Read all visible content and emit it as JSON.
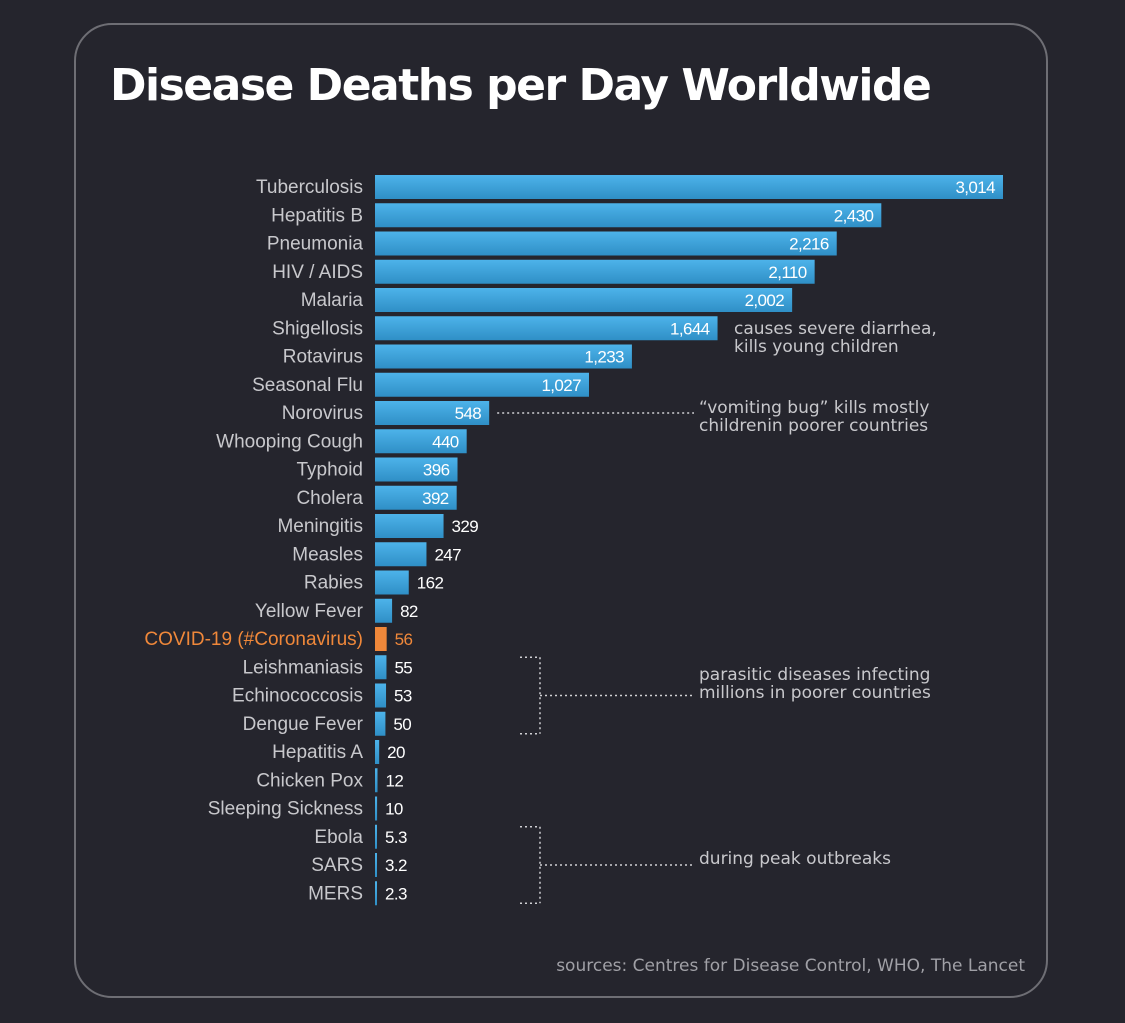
{
  "chart_data": {
    "type": "bar",
    "orientation": "horizontal",
    "title": "Disease Deaths per Day Worldwide",
    "categories": [
      "Tuberculosis",
      "Hepatitis B",
      "Pneumonia",
      "HIV / AIDS",
      "Malaria",
      "Shigellosis",
      "Rotavirus",
      "Seasonal Flu",
      "Norovirus",
      "Whooping Cough",
      "Typhoid",
      "Cholera",
      "Meningitis",
      "Measles",
      "Rabies",
      "Yellow Fever",
      "COVID-19 (#Coronavirus)",
      "Leishmaniasis",
      "Echinococcosis",
      "Dengue Fever",
      "Hepatitis A",
      "Chicken Pox",
      "Sleeping Sickness",
      "Ebola",
      "SARS",
      "MERS"
    ],
    "values": [
      3014,
      2430,
      2216,
      2110,
      2002,
      1644,
      1233,
      1027,
      548,
      440,
      396,
      392,
      329,
      247,
      162,
      82,
      56,
      55,
      53,
      50,
      20,
      12,
      10,
      5.3,
      3.2,
      2.3
    ],
    "value_labels": [
      "3,014",
      "2,430",
      "2,216",
      "2,110",
      "2,002",
      "1,644",
      "1,233",
      "1,027",
      "548",
      "440",
      "396",
      "392",
      "329",
      "247",
      "162",
      "82",
      "56",
      "55",
      "53",
      "50",
      "20",
      "12",
      "10",
      "5.3",
      "3.2",
      "2.3"
    ],
    "highlight": "COVID-19 (#Coronavirus)",
    "xlim": [
      0,
      3014
    ],
    "grid": false,
    "legend": "none"
  },
  "annotations": {
    "shigellosis": [
      "causes severe diarrhea,",
      "kills young children"
    ],
    "norovirus": [
      "“vomiting bug” kills mostly",
      "childrenin poorer countries"
    ],
    "parasitic": [
      "parasitic diseases infecting",
      "millions in poorer countries"
    ],
    "outbreaks": "during peak outbreaks"
  },
  "source": "sources: Centres for Disease Control, WHO, The Lancet",
  "colors": {
    "background": "#25252d",
    "bar": "#3aa3dc",
    "highlight": "#f0883a",
    "label": "#c8c8cc",
    "value_text": "#ffffff"
  }
}
